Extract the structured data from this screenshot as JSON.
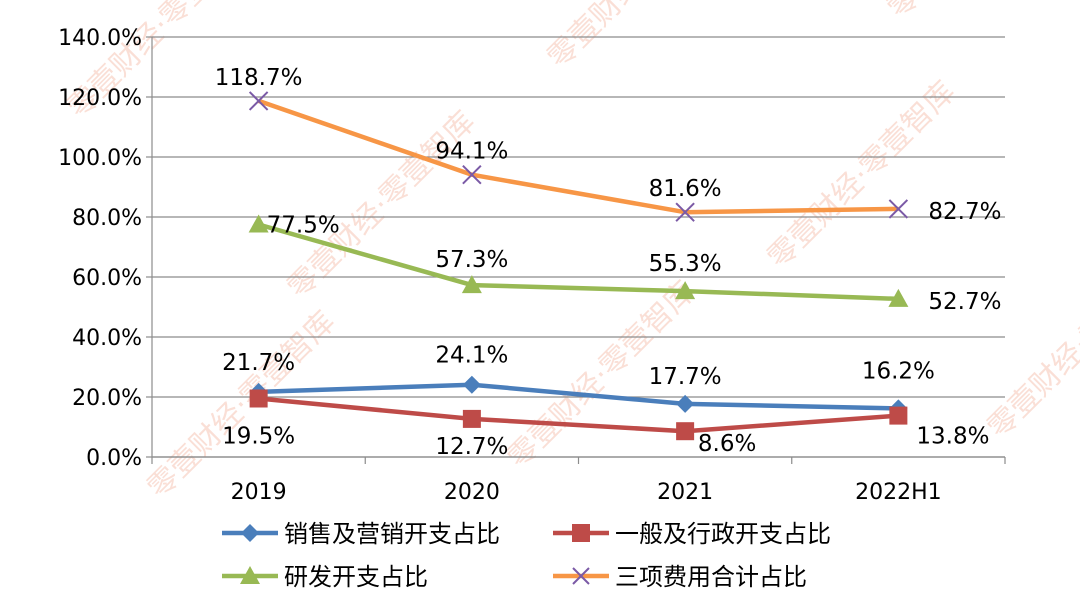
{
  "chart_data": {
    "type": "line",
    "categories": [
      "2019",
      "2020",
      "2021",
      "2022H1"
    ],
    "y_ticks": [
      "0.0%",
      "20.0%",
      "40.0%",
      "60.0%",
      "80.0%",
      "100.0%",
      "120.0%",
      "140.0%"
    ],
    "ylim": [
      0,
      140
    ],
    "grid": true,
    "legend_position": "bottom",
    "series": [
      {
        "name": "销售及营销开支占比",
        "values": [
          21.7,
          24.1,
          17.7,
          16.2
        ],
        "labels": [
          "21.7%",
          "24.1%",
          "17.7%",
          "16.2%"
        ],
        "color": "#4a7ebb",
        "marker": "diamond"
      },
      {
        "name": "一般及行政开支占比",
        "values": [
          19.5,
          12.7,
          8.6,
          13.8
        ],
        "labels": [
          "19.5%",
          "12.7%",
          "8.6%",
          "13.8%"
        ],
        "color": "#be4b48",
        "marker": "square"
      },
      {
        "name": "研发开支占比",
        "values": [
          77.5,
          57.3,
          55.3,
          52.7
        ],
        "labels": [
          "77.5%",
          "57.3%",
          "55.3%",
          "52.7%"
        ],
        "color": "#98b954",
        "marker": "triangle"
      },
      {
        "name": "三项费用合计占比",
        "values": [
          118.7,
          94.1,
          81.6,
          82.7
        ],
        "labels": [
          "118.7%",
          "94.1%",
          "81.6%",
          "82.7%"
        ],
        "color": "#f79646",
        "marker": "x"
      }
    ]
  },
  "watermark": {
    "text": "零壹财经·零壹智库",
    "color": "#f3b9a4"
  }
}
